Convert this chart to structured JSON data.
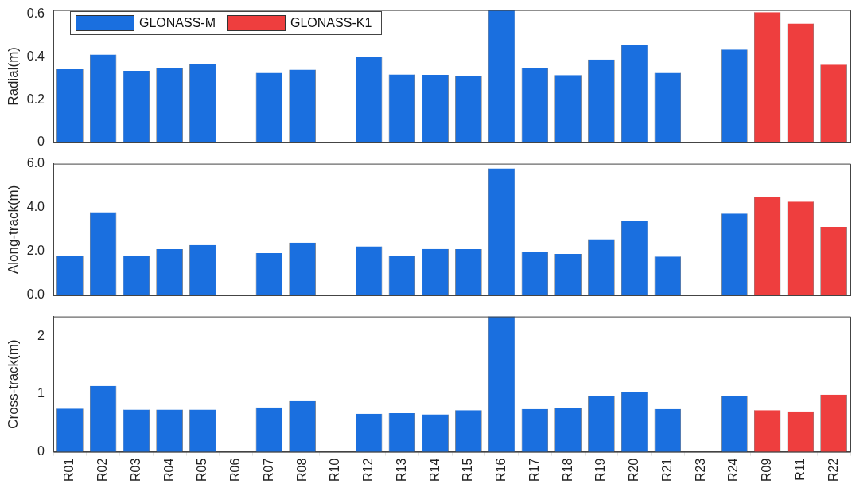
{
  "chart_data": [
    {
      "type": "bar",
      "ylabel": "Radial(m)",
      "categories": [
        null,
        null,
        null,
        null,
        null,
        null,
        null,
        null,
        null,
        null,
        null,
        null,
        null,
        null,
        null,
        null,
        null,
        null,
        null,
        null,
        null,
        null,
        null,
        null
      ],
      "series": [
        {
          "name": "GLONASS-M",
          "color": "#1a6fdf",
          "values": [
            0.342,
            0.41,
            0.334,
            0.345,
            0.368,
            null,
            0.325,
            0.34,
            null,
            0.4,
            0.318,
            0.316,
            0.31,
            0.618,
            0.346,
            0.315,
            0.387,
            0.455,
            0.325,
            null,
            0.434,
            null,
            null,
            null
          ]
        },
        {
          "name": "GLONASS-K1",
          "color": "#ee3e3e",
          "values": [
            null,
            null,
            null,
            null,
            null,
            null,
            null,
            null,
            null,
            null,
            null,
            null,
            null,
            null,
            null,
            null,
            null,
            null,
            null,
            null,
            null,
            0.608,
            0.555,
            0.363
          ]
        }
      ],
      "ylim": [
        0,
        0.618
      ],
      "yticks": [
        0,
        0.2,
        0.4,
        0.6
      ],
      "legend": "top left",
      "tick_labels": "y"
    },
    {
      "type": "bar",
      "ylabel": "Along-track(m)",
      "categories": [
        null,
        null,
        null,
        null,
        null,
        null,
        null,
        null,
        null,
        null,
        null,
        null,
        null,
        null,
        null,
        null,
        null,
        null,
        null,
        null,
        null,
        null,
        null,
        null
      ],
      "series": [
        {
          "color": "#1a6fdf",
          "values": [
            1.81,
            3.79,
            1.81,
            2.1,
            2.29,
            null,
            1.92,
            2.4,
            null,
            2.23,
            1.8,
            2.11,
            2.1,
            5.79,
            1.97,
            1.89,
            2.56,
            3.37,
            1.77,
            null,
            3.73,
            null,
            null,
            null
          ]
        },
        {
          "color": "#ee3e3e",
          "values": [
            null,
            null,
            null,
            null,
            null,
            null,
            null,
            null,
            null,
            null,
            null,
            null,
            null,
            null,
            null,
            null,
            null,
            null,
            null,
            null,
            null,
            4.49,
            4.27,
            3.12
          ]
        }
      ],
      "ylim": [
        0,
        6
      ],
      "yticks": [
        {
          "value": 0,
          "label": "0.0"
        },
        {
          "value": 2,
          "label": "2.0"
        },
        {
          "value": 4,
          "label": "4.0"
        },
        {
          "value": 6,
          "label": "6.0"
        }
      ],
      "tick_labels": "y"
    },
    {
      "type": "bar",
      "ylabel": "Cross-track(m)",
      "categories": [
        "R01",
        "R02",
        "R03",
        "R04",
        "R05",
        "R06",
        "R07",
        "R08",
        "R10",
        "R12",
        "R13",
        "R14",
        "R15",
        "R16",
        "R17",
        "R18",
        "R19",
        "R20",
        "R21",
        "R23",
        "R24",
        "R09",
        "R11",
        "R22"
      ],
      "series": [
        {
          "color": "#1a6fdf",
          "values": [
            0.75,
            1.14,
            0.73,
            0.73,
            0.73,
            null,
            0.77,
            0.88,
            null,
            0.66,
            0.67,
            0.65,
            0.72,
            2.34,
            0.74,
            0.76,
            0.96,
            1.03,
            0.74,
            null,
            0.97,
            null,
            null,
            null
          ]
        },
        {
          "color": "#ee3e3e",
          "values": [
            null,
            null,
            null,
            null,
            null,
            null,
            null,
            null,
            null,
            null,
            null,
            null,
            null,
            null,
            null,
            null,
            null,
            null,
            null,
            null,
            null,
            0.72,
            0.7,
            0.99
          ]
        }
      ],
      "ylim": [
        0,
        2.34
      ],
      "yticks": [
        0,
        1,
        2
      ]
    }
  ]
}
